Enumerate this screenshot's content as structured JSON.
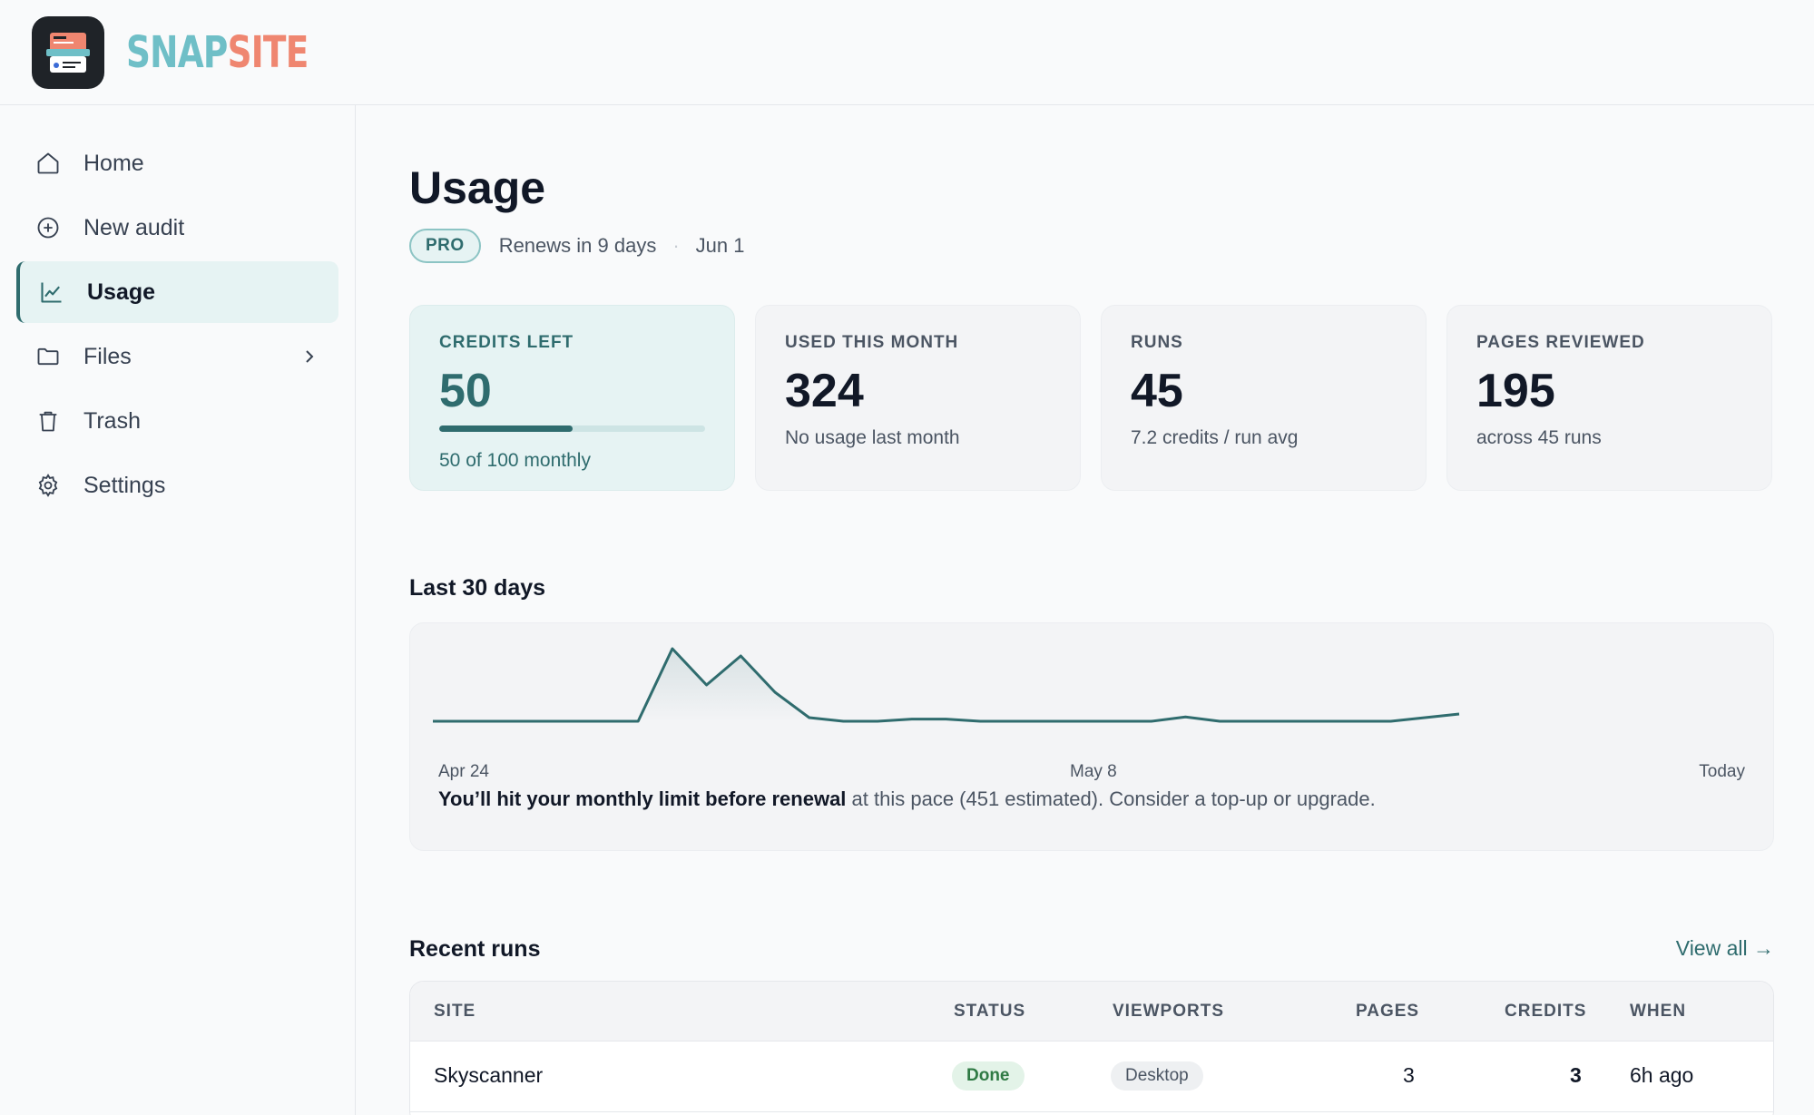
{
  "brand": {
    "part1": "SNAP",
    "part2": "SITE",
    "accent1": "#6fbfc7",
    "accent2": "#ef8670"
  },
  "sidebar": {
    "items": [
      {
        "label": "Home",
        "icon": "home-icon"
      },
      {
        "label": "New audit",
        "icon": "plus-circle-icon"
      },
      {
        "label": "Usage",
        "icon": "chart-line-icon",
        "active": true
      },
      {
        "label": "Files",
        "icon": "folder-icon",
        "has_submenu": true
      },
      {
        "label": "Trash",
        "icon": "trash-icon"
      },
      {
        "label": "Settings",
        "icon": "gear-icon"
      }
    ]
  },
  "page": {
    "title": "Usage",
    "plan": "PRO",
    "renews": "Renews in 9 days",
    "separator": "·",
    "renew_date": "Jun 1"
  },
  "cards": [
    {
      "label": "CREDITS LEFT",
      "value": "50",
      "sub": "50 of 100 monthly",
      "progress": 0.5
    },
    {
      "label": "USED THIS MONTH",
      "value": "324",
      "sub": "No usage last month"
    },
    {
      "label": "RUNS",
      "value": "45",
      "sub": "7.2 credits / run avg"
    },
    {
      "label": "PAGES REVIEWED",
      "value": "195",
      "sub": "across 45 runs"
    }
  ],
  "chart_section": {
    "title": "Last 30 days",
    "warning_bold": "You’ll hit your monthly limit before renewal",
    "warning_rest": " at this pace (451 estimated). Consider a top-up or upgrade."
  },
  "chart_data": {
    "type": "area",
    "x_ticks": [
      "Apr 24",
      "May 8",
      "Today"
    ],
    "values": [
      0,
      0,
      0,
      0,
      0,
      0,
      0,
      100,
      50,
      90,
      40,
      5,
      0,
      0,
      3,
      3,
      0,
      0,
      0,
      0,
      0,
      0,
      6,
      0,
      0,
      0,
      0,
      0,
      0,
      5,
      10
    ],
    "color": "#2f6c6e"
  },
  "recent_runs": {
    "title": "Recent runs",
    "view_all": "View all →",
    "columns": [
      "SITE",
      "STATUS",
      "VIEWPORTS",
      "PAGES",
      "CREDITS",
      "WHEN"
    ],
    "rows": [
      {
        "site": "Skyscanner",
        "status": "Done",
        "viewports": "Desktop",
        "pages": "3",
        "credits": "3",
        "when": "6h ago"
      }
    ]
  }
}
